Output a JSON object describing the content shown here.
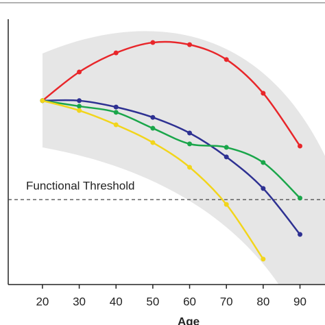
{
  "chart_data": {
    "type": "line",
    "x_label": "Age",
    "x": [
      20,
      30,
      40,
      50,
      60,
      70,
      80,
      90
    ],
    "xlim": [
      10.7,
      96.8
    ],
    "xticks": [
      20,
      30,
      40,
      50,
      60,
      70,
      80,
      90
    ],
    "ylim": [
      0,
      100
    ],
    "series": [
      {
        "color": "#e8262a",
        "values": [
          69.3,
          80.1,
          87.3,
          91.2,
          90.4,
          84.8,
          72.1,
          52.2
        ]
      },
      {
        "color": "#2e3192",
        "values": [
          69.3,
          69.3,
          66.9,
          63.0,
          57.1,
          48.1,
          36.2,
          18.9
        ]
      },
      {
        "color": "#1aa64a",
        "values": [
          69.3,
          67.2,
          64.9,
          58.9,
          53.0,
          51.7,
          46.0,
          32.6
        ]
      },
      {
        "color": "#f2d51b",
        "values": [
          69.3,
          65.6,
          60.2,
          53.5,
          44.2,
          30.2,
          9.6,
          null
        ]
      }
    ],
    "threshold": {
      "label": "Functional Threshold",
      "value": 32.0
    }
  }
}
